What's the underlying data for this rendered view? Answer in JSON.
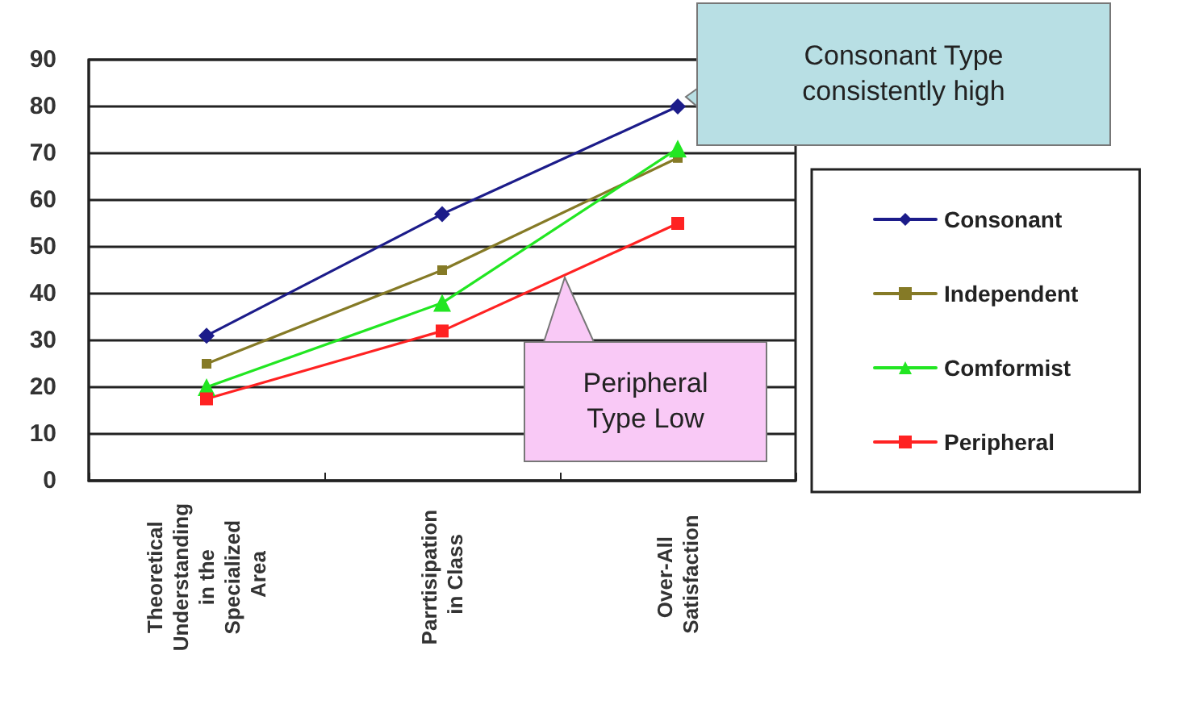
{
  "chart_data": {
    "type": "line",
    "categories": [
      "Theoretical Understanding in the Specialized Area",
      "Parrtisipation in Class",
      "Over-All Satisfaction"
    ],
    "series": [
      {
        "name": "Consonant",
        "color": "#1c1c8a",
        "marker": "diamond",
        "values": [
          31,
          57,
          80
        ]
      },
      {
        "name": "Independent",
        "color": "#857a26",
        "marker": "square",
        "values": [
          25,
          45,
          69
        ]
      },
      {
        "name": "Comformist",
        "color": "#22e622",
        "marker": "triangle",
        "values": [
          20,
          38,
          71
        ]
      },
      {
        "name": "Peripheral",
        "color": "#ff2222",
        "marker": "square",
        "values": [
          17.5,
          32,
          55
        ]
      }
    ],
    "ylim": [
      0,
      90
    ],
    "yticks": [
      0,
      10,
      20,
      30,
      40,
      50,
      60,
      70,
      80,
      90
    ],
    "grid": "y",
    "legend": "right",
    "annotations": [
      "Consonant Type\nconsistently high",
      "Peripheral\nType Low"
    ]
  }
}
